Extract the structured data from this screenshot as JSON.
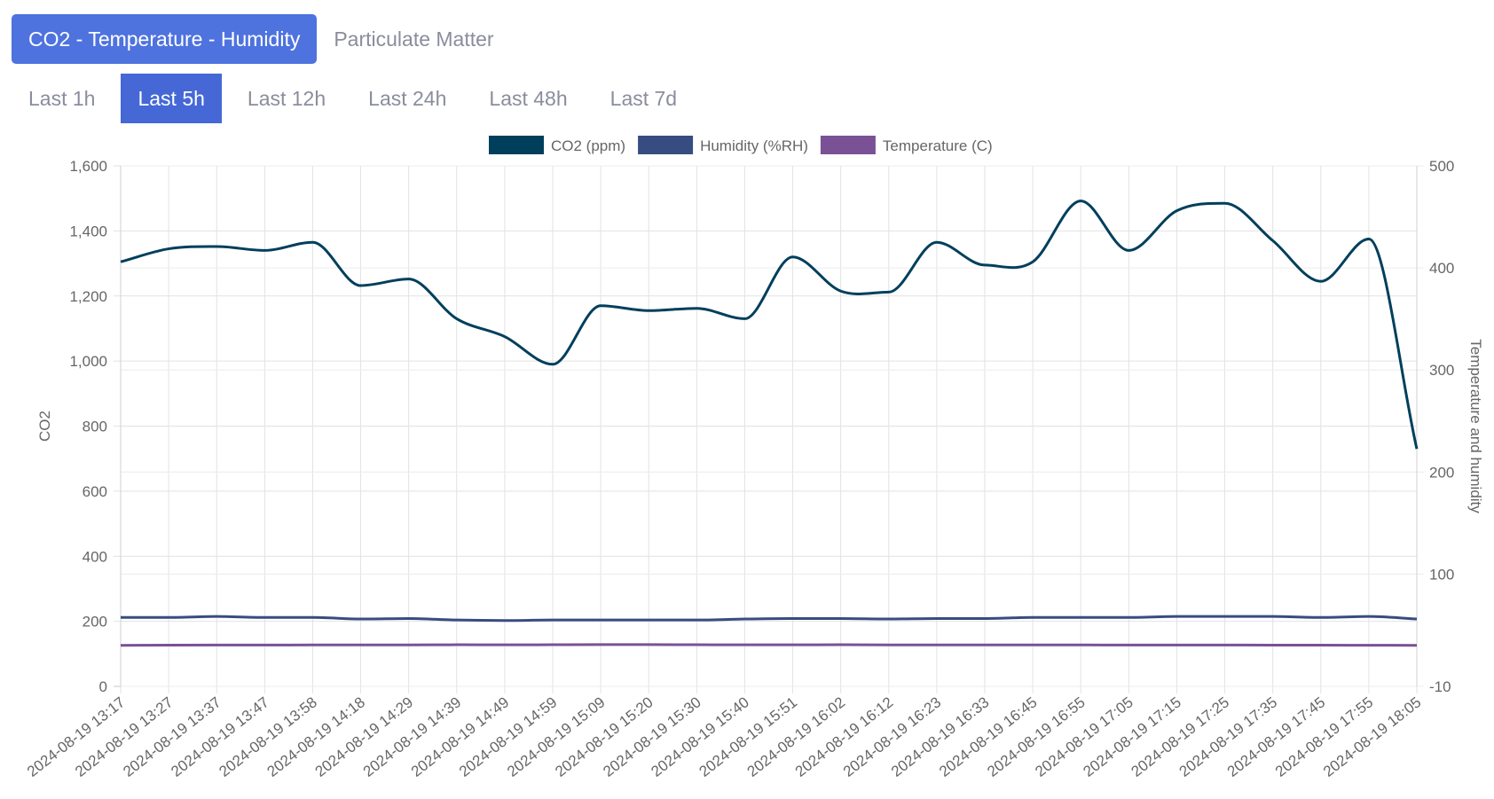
{
  "tabs": [
    {
      "label": "CO2 - Temperature - Humidity",
      "active": true
    },
    {
      "label": "Particulate Matter",
      "active": false
    }
  ],
  "ranges": [
    {
      "label": "Last 1h",
      "active": false
    },
    {
      "label": "Last 5h",
      "active": true
    },
    {
      "label": "Last 12h",
      "active": false
    },
    {
      "label": "Last 24h",
      "active": false
    },
    {
      "label": "Last 48h",
      "active": false
    },
    {
      "label": "Last 7d",
      "active": false
    }
  ],
  "chart_data": {
    "type": "line",
    "x": [
      "2024-08-19 13:17",
      "2024-08-19 13:27",
      "2024-08-19 13:37",
      "2024-08-19 13:47",
      "2024-08-19 13:58",
      "2024-08-19 14:18",
      "2024-08-19 14:29",
      "2024-08-19 14:39",
      "2024-08-19 14:49",
      "2024-08-19 14:59",
      "2024-08-19 15:09",
      "2024-08-19 15:20",
      "2024-08-19 15:30",
      "2024-08-19 15:40",
      "2024-08-19 15:51",
      "2024-08-19 16:02",
      "2024-08-19 16:12",
      "2024-08-19 16:23",
      "2024-08-19 16:33",
      "2024-08-19 16:45",
      "2024-08-19 16:55",
      "2024-08-19 17:05",
      "2024-08-19 17:15",
      "2024-08-19 17:25",
      "2024-08-19 17:35",
      "2024-08-19 17:45",
      "2024-08-19 17:55",
      "2024-08-19 18:05"
    ],
    "series": [
      {
        "name": "CO2 (ppm)",
        "axis": "left",
        "color": "#003f5c",
        "values": [
          1305,
          1345,
          1352,
          1340,
          1365,
          1232,
          1252,
          1130,
          1075,
          990,
          1170,
          1155,
          1162,
          1130,
          1320,
          1215,
          1212,
          1365,
          1295,
          1305,
          1492,
          1340,
          1462,
          1485,
          1370,
          1245,
          1375,
          730
        ]
      },
      {
        "name": "Humidity (%RH)",
        "axis": "right",
        "color": "#374c80",
        "values": [
          57.5,
          57.5,
          58.5,
          57.5,
          57.5,
          56,
          56.5,
          55,
          54.5,
          55,
          55,
          55,
          55,
          56,
          56.5,
          56.5,
          56,
          56.5,
          56.5,
          57.5,
          57.5,
          57.5,
          58.5,
          58.5,
          58.5,
          57.5,
          58.5,
          56
        ]
      },
      {
        "name": "Temperature (C)",
        "axis": "right",
        "color": "#7a5195",
        "values": [
          30.2,
          30.4,
          30.5,
          30.5,
          30.6,
          30.6,
          30.6,
          30.8,
          30.7,
          30.8,
          30.9,
          30.9,
          30.8,
          30.7,
          30.7,
          30.8,
          30.6,
          30.6,
          30.6,
          30.6,
          30.6,
          30.5,
          30.5,
          30.5,
          30.4,
          30.4,
          30.3,
          30.2
        ]
      }
    ],
    "left_axis": {
      "label": "CO2",
      "range": [
        0,
        1600
      ],
      "ticks": [
        "0",
        "200",
        "400",
        "600",
        "800",
        "1,000",
        "1,200",
        "1,400",
        "1,600"
      ]
    },
    "right_axis": {
      "label": "Temperature and humidity",
      "range": [
        -10,
        500
      ],
      "ticks": [
        "-10",
        "100",
        "200",
        "300",
        "400",
        "500"
      ]
    },
    "legend": "top",
    "grid": true
  }
}
